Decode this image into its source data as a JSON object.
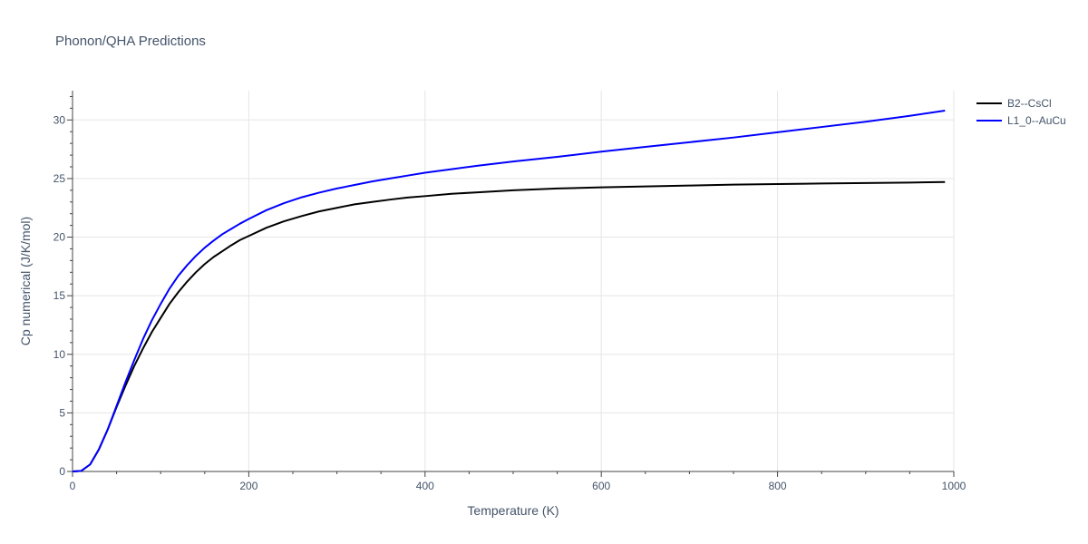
{
  "chart_data": {
    "type": "line",
    "title": "Phonon/QHA Predictions",
    "xlabel": "Temperature (K)",
    "ylabel": "Cp numerical (J/K/mol)",
    "xlim": [
      0,
      1000
    ],
    "ylim": [
      0,
      32.5
    ],
    "x_ticks": [
      0,
      200,
      400,
      600,
      800,
      1000
    ],
    "y_ticks": [
      0,
      5,
      10,
      15,
      20,
      25,
      30
    ],
    "grid": true,
    "legend_position": "top-right",
    "series": [
      {
        "name": "B2--CsCl",
        "color": "#000000",
        "x": [
          0,
          10,
          20,
          30,
          40,
          50,
          60,
          70,
          80,
          90,
          100,
          110,
          120,
          130,
          140,
          150,
          160,
          170,
          180,
          190,
          200,
          220,
          240,
          260,
          280,
          300,
          320,
          340,
          360,
          380,
          400,
          430,
          460,
          500,
          550,
          600,
          650,
          700,
          750,
          800,
          850,
          900,
          950,
          990
        ],
        "y": [
          0,
          0.05,
          0.6,
          1.9,
          3.6,
          5.5,
          7.3,
          9.0,
          10.5,
          11.9,
          13.1,
          14.3,
          15.3,
          16.2,
          17.0,
          17.7,
          18.3,
          18.8,
          19.3,
          19.75,
          20.1,
          20.8,
          21.35,
          21.8,
          22.2,
          22.5,
          22.8,
          23.0,
          23.2,
          23.38,
          23.5,
          23.7,
          23.82,
          24.0,
          24.15,
          24.25,
          24.33,
          24.4,
          24.48,
          24.53,
          24.58,
          24.62,
          24.66,
          24.7
        ]
      },
      {
        "name": "L1_0--AuCu",
        "color": "#0000ff",
        "x": [
          0,
          10,
          20,
          30,
          40,
          50,
          60,
          70,
          80,
          90,
          100,
          110,
          120,
          130,
          140,
          150,
          160,
          170,
          180,
          190,
          200,
          220,
          240,
          260,
          280,
          300,
          320,
          340,
          360,
          380,
          400,
          430,
          460,
          500,
          550,
          600,
          650,
          700,
          750,
          800,
          850,
          900,
          950,
          990
        ],
        "y": [
          0,
          0.05,
          0.6,
          1.9,
          3.6,
          5.6,
          7.6,
          9.5,
          11.3,
          12.9,
          14.3,
          15.6,
          16.7,
          17.6,
          18.4,
          19.1,
          19.7,
          20.25,
          20.7,
          21.15,
          21.55,
          22.3,
          22.9,
          23.4,
          23.8,
          24.15,
          24.45,
          24.75,
          25.0,
          25.25,
          25.5,
          25.8,
          26.1,
          26.45,
          26.85,
          27.3,
          27.7,
          28.1,
          28.5,
          28.95,
          29.4,
          29.85,
          30.35,
          30.8
        ]
      }
    ]
  }
}
